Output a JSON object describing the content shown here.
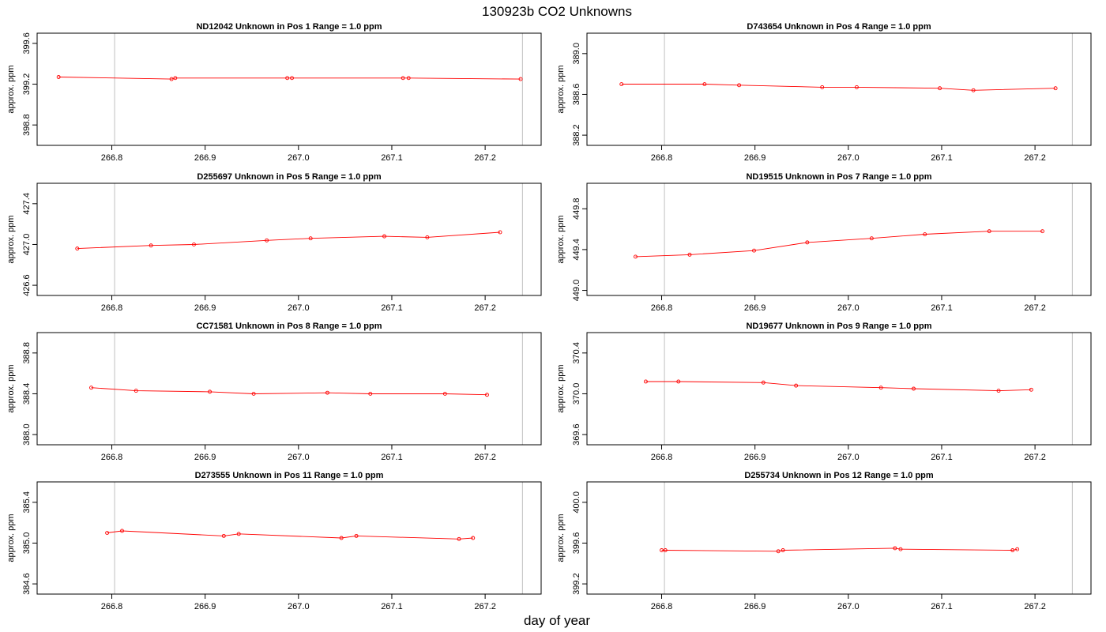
{
  "figure": {
    "title": "130923b  CO2 Unknowns",
    "xlabel": "day of year"
  },
  "chart_data": [
    {
      "type": "line",
      "title": "ND12042    Unknown in Pos 1          Range = 1.0 ppm",
      "ylabel": "approx. ppm",
      "xlim": [
        266.72,
        267.26
      ],
      "ylim": [
        398.6,
        399.7
      ],
      "x_ticks": [
        "266.8",
        "266.9",
        "267.0",
        "267.1",
        "267.2"
      ],
      "y_ticks": [
        "398.8",
        "399.2",
        "399.6"
      ],
      "vlines": [
        266.803,
        267.24
      ],
      "series": [
        {
          "color": "#ff0000",
          "x": [
            266.743,
            266.864,
            266.868,
            266.988,
            266.993,
            267.112,
            267.118,
            267.238
          ],
          "y": [
            399.27,
            399.25,
            399.26,
            399.26,
            399.26,
            399.26,
            399.26,
            399.25
          ]
        }
      ]
    },
    {
      "type": "line",
      "title": "D743654    Unknown in Pos 4          Range = 1.0 ppm",
      "ylabel": "approx. ppm",
      "xlim": [
        266.72,
        267.26
      ],
      "ylim": [
        388.1,
        389.2
      ],
      "x_ticks": [
        "266.8",
        "266.9",
        "267.0",
        "267.1",
        "267.2"
      ],
      "y_ticks": [
        "388.2",
        "388.6",
        "389.0"
      ],
      "vlines": [
        266.803,
        267.24
      ],
      "series": [
        {
          "color": "#ff0000",
          "x": [
            266.757,
            266.846,
            266.883,
            266.972,
            267.009,
            267.098,
            267.134,
            267.222
          ],
          "y": [
            388.7,
            388.7,
            388.69,
            388.67,
            388.67,
            388.66,
            388.64,
            388.66
          ]
        }
      ]
    },
    {
      "type": "line",
      "title": "D255697    Unknown in Pos 5          Range = 1.0 ppm",
      "ylabel": "approx. ppm",
      "xlim": [
        266.72,
        267.26
      ],
      "ylim": [
        426.5,
        427.6
      ],
      "x_ticks": [
        "266.8",
        "266.9",
        "267.0",
        "267.1",
        "267.2"
      ],
      "y_ticks": [
        "426.6",
        "427.0",
        "427.4"
      ],
      "vlines": [
        266.803,
        267.24
      ],
      "series": [
        {
          "color": "#ff0000",
          "x": [
            266.763,
            266.842,
            266.888,
            266.966,
            267.013,
            267.092,
            267.138,
            267.216
          ],
          "y": [
            426.96,
            426.99,
            427.0,
            427.04,
            427.06,
            427.08,
            427.07,
            427.12
          ]
        }
      ]
    },
    {
      "type": "line",
      "title": "ND19515    Unknown in Pos 7          Range = 1.0 ppm",
      "ylabel": "approx. ppm",
      "xlim": [
        266.72,
        267.26
      ],
      "ylim": [
        448.95,
        450.05
      ],
      "x_ticks": [
        "266.8",
        "266.9",
        "267.0",
        "267.1",
        "267.2"
      ],
      "y_ticks": [
        "449.0",
        "449.4",
        "449.8"
      ],
      "vlines": [
        266.803,
        267.24
      ],
      "series": [
        {
          "color": "#ff0000",
          "x": [
            266.772,
            266.83,
            266.899,
            266.956,
            267.025,
            267.082,
            267.151,
            267.208
          ],
          "y": [
            449.33,
            449.35,
            449.39,
            449.47,
            449.51,
            449.55,
            449.58,
            449.58
          ]
        }
      ]
    },
    {
      "type": "line",
      "title": "CC71581    Unknown in Pos 8          Range = 1.0 ppm",
      "ylabel": "approx. ppm",
      "xlim": [
        266.72,
        267.26
      ],
      "ylim": [
        387.9,
        389.0
      ],
      "x_ticks": [
        "266.8",
        "266.9",
        "267.0",
        "267.1",
        "267.2"
      ],
      "y_ticks": [
        "388.0",
        "388.4",
        "388.8"
      ],
      "vlines": [
        266.803,
        267.24
      ],
      "series": [
        {
          "color": "#ff0000",
          "x": [
            266.778,
            266.826,
            266.905,
            266.952,
            267.031,
            267.077,
            267.157,
            267.202
          ],
          "y": [
            388.46,
            388.43,
            388.42,
            388.4,
            388.41,
            388.4,
            388.4,
            388.39
          ]
        }
      ]
    },
    {
      "type": "line",
      "title": "ND19677    Unknown in Pos 9          Range = 1.0 ppm",
      "ylabel": "approx. ppm",
      "xlim": [
        266.72,
        267.26
      ],
      "ylim": [
        369.5,
        370.6
      ],
      "x_ticks": [
        "266.8",
        "266.9",
        "267.0",
        "267.1",
        "267.2"
      ],
      "y_ticks": [
        "369.6",
        "370.0",
        "370.4"
      ],
      "vlines": [
        266.803,
        267.24
      ],
      "series": [
        {
          "color": "#ff0000",
          "x": [
            266.783,
            266.818,
            266.909,
            266.944,
            267.035,
            267.07,
            267.161,
            267.196
          ],
          "y": [
            370.12,
            370.12,
            370.11,
            370.08,
            370.06,
            370.05,
            370.03,
            370.04
          ]
        }
      ]
    },
    {
      "type": "line",
      "title": "D273555    Unknown in Pos 11          Range = 1.0 ppm",
      "ylabel": "approx. ppm",
      "xlim": [
        266.72,
        267.26
      ],
      "ylim": [
        384.5,
        385.6
      ],
      "x_ticks": [
        "266.8",
        "266.9",
        "267.0",
        "267.1",
        "267.2"
      ],
      "y_ticks": [
        "384.6",
        "385.0",
        "385.4"
      ],
      "vlines": [
        266.803,
        267.24
      ],
      "series": [
        {
          "color": "#ff0000",
          "x": [
            266.795,
            266.811,
            266.92,
            266.936,
            267.046,
            267.062,
            267.172,
            267.187
          ],
          "y": [
            385.1,
            385.12,
            385.07,
            385.09,
            385.05,
            385.07,
            385.04,
            385.05
          ]
        }
      ]
    },
    {
      "type": "line",
      "title": "D255734    Unknown in Pos 12          Range = 1.0 ppm",
      "ylabel": "approx. ppm",
      "xlim": [
        266.72,
        267.26
      ],
      "ylim": [
        399.1,
        400.2
      ],
      "x_ticks": [
        "266.8",
        "266.9",
        "267.0",
        "267.1",
        "267.2"
      ],
      "y_ticks": [
        "399.2",
        "399.6",
        "400.0"
      ],
      "vlines": [
        266.803,
        267.24
      ],
      "series": [
        {
          "color": "#ff0000",
          "x": [
            266.8,
            266.804,
            266.925,
            266.93,
            267.05,
            267.056,
            267.176,
            267.181
          ],
          "y": [
            399.53,
            399.53,
            399.52,
            399.53,
            399.55,
            399.54,
            399.53,
            399.54
          ]
        }
      ]
    }
  ]
}
